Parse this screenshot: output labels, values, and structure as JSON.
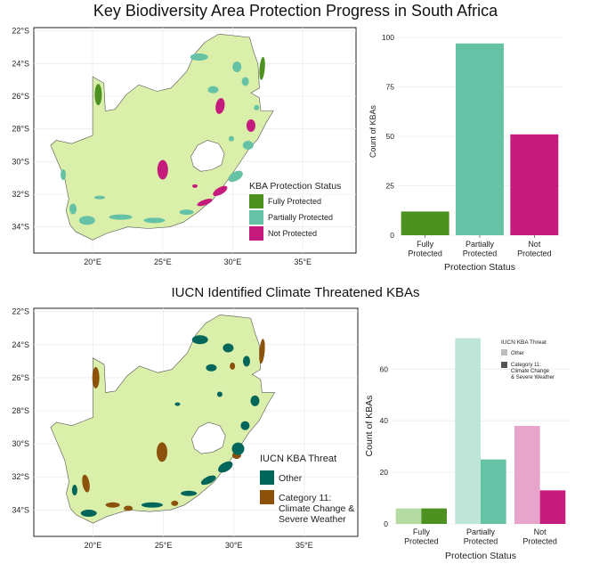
{
  "top_title": "Key Biodiversity Area Protection Progress in South Africa",
  "bottom_title": "IUCN Identified Climate Threatened KBAs",
  "colors": {
    "land": "#d9efaa",
    "fully": "#4d9221",
    "partially": "#66c2a5",
    "not": "#c51b7d",
    "other_threat": "#00665a",
    "cat11_threat": "#8c510a",
    "light_other": "#c4b9a6",
    "dark_cat11": "#555555"
  },
  "map_top": {
    "lat_ticks": [
      "22°S",
      "24°S",
      "26°S",
      "28°S",
      "30°S",
      "32°S",
      "34°S"
    ],
    "lon_ticks": [
      "20°E",
      "25°E",
      "30°E",
      "35°E"
    ],
    "legend_title": "KBA Protection Status",
    "legend_items": [
      "Fully Protected",
      "Partially Protected",
      "Not Protected"
    ]
  },
  "map_bottom": {
    "lat_ticks": [
      "22°S",
      "24°S",
      "26°S",
      "28°S",
      "30°S",
      "32°S",
      "34°S"
    ],
    "lon_ticks": [
      "20°E",
      "25°E",
      "30°E",
      "35°E"
    ],
    "legend_title": "IUCN KBA Threat",
    "legend_items": [
      "Other",
      "Category 11:\nClimate Change &\nSevere Weather"
    ]
  },
  "chart_data": [
    {
      "type": "bar",
      "categories": [
        "Fully\nProtected",
        "Partially\nProtected",
        "Not\nProtected"
      ],
      "values": [
        12,
        97,
        51
      ],
      "ylim": [
        0,
        105
      ],
      "yticks": [
        0,
        25,
        50,
        75,
        100
      ],
      "xlabel": "Protection Status",
      "ylabel": "Count of KBAs",
      "grid": true
    },
    {
      "type": "bar",
      "categories": [
        "Fully\nProtected",
        "Partially\nProtected",
        "Not\nProtected"
      ],
      "series": [
        {
          "name": "Other",
          "values": [
            6,
            72,
            38
          ]
        },
        {
          "name": "Category 11:\nClimate Change\n& Severe Weather",
          "values": [
            6,
            25,
            13
          ]
        }
      ],
      "ylim": [
        0,
        76
      ],
      "yticks": [
        0,
        20,
        40,
        60
      ],
      "xlabel": "Protection Status",
      "ylabel": "Count of KBAs",
      "legend_title": "IUCN KBA Threat",
      "legend_position": "top-right",
      "grid": true
    }
  ]
}
